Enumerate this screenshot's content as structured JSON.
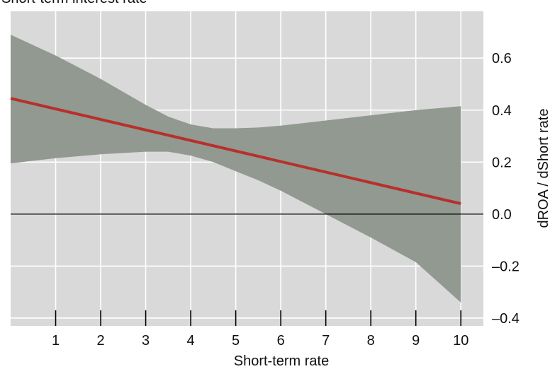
{
  "chart_data": {
    "type": "line",
    "title": "Short-term interest rate",
    "xlabel": "Short-term rate",
    "ylabel": "dROA / dShort rate",
    "xlim": [
      0,
      10.5
    ],
    "ylim": [
      -0.43,
      0.78
    ],
    "x_ticks": [
      1,
      2,
      3,
      4,
      5,
      6,
      7,
      8,
      9,
      10
    ],
    "x_tick_labels": [
      "1",
      "2",
      "3",
      "4",
      "5",
      "6",
      "7",
      "8",
      "9",
      "10"
    ],
    "y_ticks": [
      0.6,
      0.4,
      0.2,
      0.0,
      -0.2,
      -0.4
    ],
    "y_tick_labels": [
      "0.6",
      "0.4",
      "0.2",
      "0.0",
      "–0.2",
      "–0.4"
    ],
    "grid": true,
    "reference_line_y": 0,
    "series": [
      {
        "role": "estimate",
        "x": [
          0,
          10
        ],
        "y": [
          0.445,
          0.04
        ]
      },
      {
        "role": "confidence_band",
        "x": [
          0,
          1,
          2,
          3,
          3.5,
          4,
          4.5,
          5,
          5.5,
          6,
          7,
          8,
          9,
          10
        ],
        "upper": [
          0.69,
          0.61,
          0.52,
          0.42,
          0.375,
          0.345,
          0.33,
          0.33,
          0.333,
          0.34,
          0.36,
          0.38,
          0.4,
          0.415
        ],
        "lower": [
          0.195,
          0.215,
          0.23,
          0.24,
          0.24,
          0.225,
          0.2,
          0.165,
          0.13,
          0.09,
          0.0,
          -0.09,
          -0.185,
          -0.34
        ]
      }
    ],
    "colors": {
      "background": "#d9d9d9",
      "grid": "#ffffff",
      "band": "#919991",
      "line": "#b7302b",
      "zero_line": "#000000"
    }
  }
}
